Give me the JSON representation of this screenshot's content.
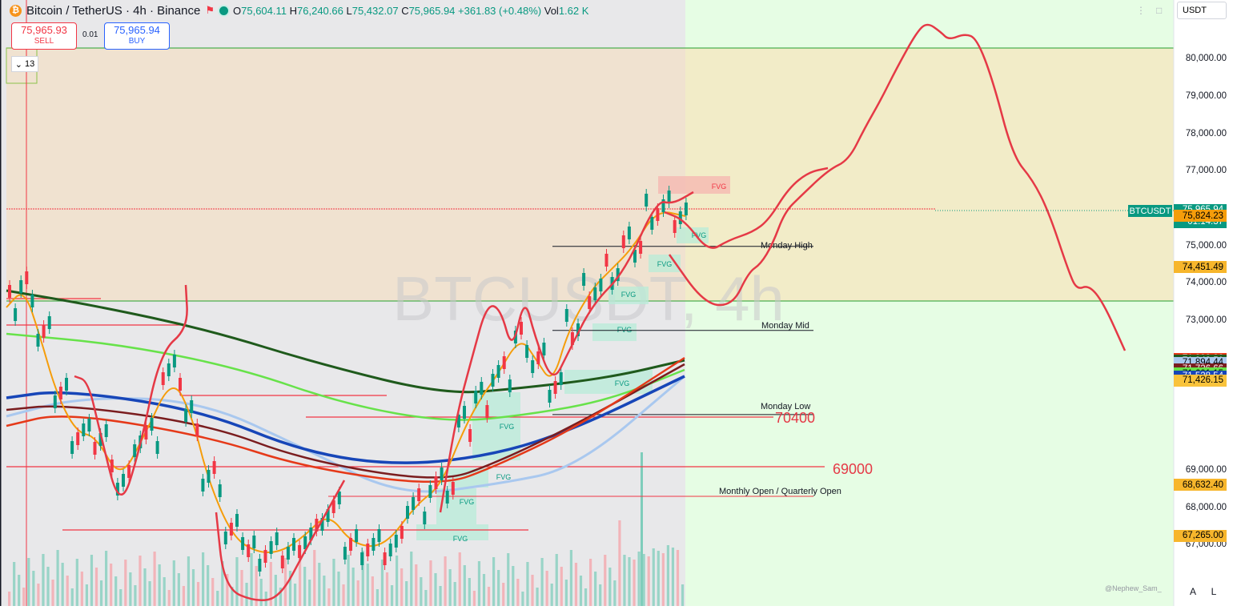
{
  "header": {
    "title": "Bitcoin / TetherUS · 4h · Binance",
    "logo_glyph": "₿",
    "ohlc": {
      "o_label": "O",
      "o": "75,604.11",
      "h_label": "H",
      "h": "76,240.66",
      "l_label": "L",
      "l": "75,432.07",
      "c_label": "C",
      "c": "75,965.94",
      "change": "+361.83 (+0.48%)",
      "vol_label": "Vol",
      "vol": "1.62 K"
    }
  },
  "trade": {
    "sell_price": "75,965.93",
    "sell_label": "SELL",
    "spread": "0.01",
    "buy_price": "75,965.94",
    "buy_label": "BUY"
  },
  "indicators_count": "13",
  "currency_select": "USDT",
  "watermark": "BTCUSDT, 4h",
  "watermark_user": "@Nephew_Sam_",
  "symbol_tag": "BTCUSDT",
  "current_price": "75,965.94",
  "countdown": "01:14:37",
  "axis": {
    "ticks": [
      "80,000.00",
      "79,000.00",
      "78,000.00",
      "77,000.00",
      "75,000.00",
      "74,000.00",
      "73,000.00",
      "69,000.00",
      "68,000.00",
      "67,000.00"
    ],
    "tick_values": [
      80000,
      79000,
      78000,
      77000,
      75000,
      74000,
      73000,
      69000,
      68000,
      67000
    ]
  },
  "price_labels": [
    {
      "text": "75,824.23",
      "value": 75824.23,
      "bg": "#f59d0b",
      "fg": "#000000"
    },
    {
      "text": "74,451.49",
      "value": 74451.49,
      "bg": "#f7b62c",
      "fg": "#000000"
    },
    {
      "text": "71,998.06",
      "value": 71998.06,
      "bg": "#e53919",
      "fg": "#ffffff"
    },
    {
      "text": "71,942.51",
      "value": 71942.51,
      "bg": "#1f5a1c",
      "fg": "#ffffff"
    },
    {
      "text": "71,894.44",
      "value": 71894.44,
      "bg": "#a9c8ef",
      "fg": "#000000"
    },
    {
      "text": "71,726.66",
      "value": 71726.66,
      "bg": "#7a1d1f",
      "fg": "#ffffff"
    },
    {
      "text": "71,601.15",
      "value": 71601.15,
      "bg": "#67e24a",
      "fg": "#000000"
    },
    {
      "text": "71,528.54",
      "value": 71528.54,
      "bg": "#1746b8",
      "fg": "#ffffff"
    },
    {
      "text": "71,426.15",
      "value": 71426.15,
      "bg": "#f9c33b",
      "fg": "#000000"
    },
    {
      "text": "68,632.40",
      "value": 68632.4,
      "bg": "#f7b62c",
      "fg": "#000000"
    },
    {
      "text": "67,265.00",
      "value": 67265.0,
      "bg": "#f7b62c",
      "fg": "#000000"
    }
  ],
  "levels": {
    "monday_high": {
      "label": "Monday High",
      "value": 75000
    },
    "monday_mid": {
      "label": "Monday Mid",
      "value": 72750
    },
    "monday_low": {
      "label": "Monday Low",
      "value": 70500
    },
    "level_70400": {
      "label": "70400",
      "value": 70400
    },
    "level_69000": {
      "label": "69000",
      "value": 69000
    },
    "monthly_open": {
      "label": "Monthly Open / Quarterly Open",
      "value": 68250
    }
  },
  "fvg_label": "FVG",
  "corner_buttons": {
    "auto": "A",
    "log": "L"
  },
  "colors": {
    "up": "#089981",
    "down": "#f23645",
    "accent": "#2962ff",
    "projection": "#e53946",
    "zone_top": "#f7d9be",
    "zone_future": "#e5ffe3"
  }
}
